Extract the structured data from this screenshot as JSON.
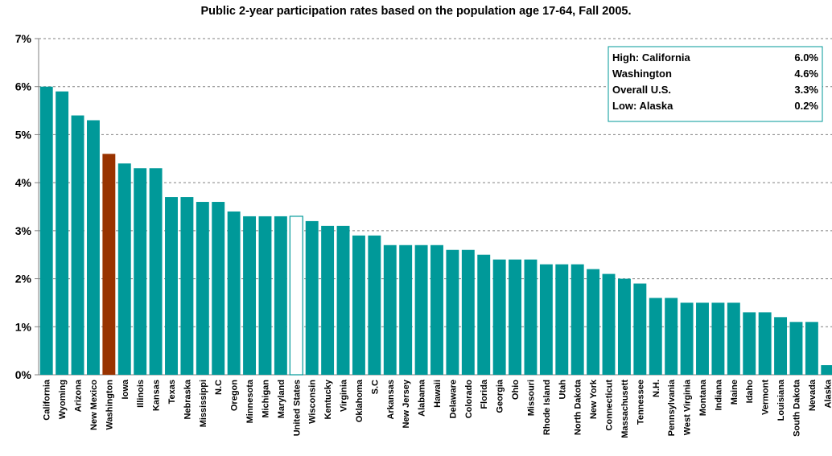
{
  "chart_data": {
    "type": "bar",
    "title": "Public 2-year participation rates based on the population age 17-64, Fall 2005.",
    "ylim": [
      0,
      7
    ],
    "y_ticks": [
      0,
      1,
      2,
      3,
      4,
      5,
      6,
      7
    ],
    "y_tick_labels": [
      "0%",
      "1%",
      "2%",
      "3%",
      "4%",
      "5%",
      "6%",
      "7%"
    ],
    "grid": "dashed horizontal",
    "categories": [
      "California",
      "Wyoming",
      "Arizona",
      "New Mexico",
      "Washington",
      "Iowa",
      "Illinois",
      "Kansas",
      "Texas",
      "Nebraska",
      "Mississippi",
      "N.C",
      "Oregon",
      "Minnesota",
      "Michigan",
      "Maryland",
      "United States",
      "Wisconsin",
      "Kentucky",
      "Virginia",
      "Oklahoma",
      "S.C",
      "Arkansas",
      "New Jersey",
      "Alabama",
      "Hawaii",
      "Delaware",
      "Colorado",
      "Florida",
      "Georgia",
      "Ohio",
      "Missouri",
      "Rhode Island",
      "Utah",
      "North Dakota",
      "New York",
      "Connecticut",
      "Massachusett",
      "Tennessee",
      "N.H.",
      "Pennsylvania",
      "West Virginia",
      "Montana",
      "Indiana",
      "Maine",
      "Idaho",
      "Vermont",
      "Louisiana",
      "South Dakota",
      "Nevada",
      "Alaska"
    ],
    "values": [
      6.0,
      5.9,
      5.4,
      5.3,
      4.6,
      4.4,
      4.3,
      4.3,
      3.7,
      3.7,
      3.6,
      3.6,
      3.4,
      3.3,
      3.3,
      3.3,
      3.3,
      3.2,
      3.1,
      3.1,
      2.9,
      2.9,
      2.7,
      2.7,
      2.7,
      2.7,
      2.6,
      2.6,
      2.5,
      2.4,
      2.4,
      2.4,
      2.3,
      2.3,
      2.3,
      2.2,
      2.1,
      2.0,
      1.9,
      1.6,
      1.6,
      1.5,
      1.5,
      1.5,
      1.5,
      1.3,
      1.3,
      1.2,
      1.1,
      1.1,
      0.2
    ],
    "highlight": {
      "Washington": "highlight",
      "United States": "outline"
    },
    "legend_box": {
      "position": "top-right",
      "rows": [
        {
          "label": "High: California",
          "value": "6.0%"
        },
        {
          "label": "Washington",
          "value": "4.6%"
        },
        {
          "label": "Overall U.S.",
          "value": "3.3%"
        },
        {
          "label": "Low: Alaska",
          "value": "0.2%"
        }
      ]
    }
  },
  "colors": {
    "bar": "#009999",
    "highlight": "#993300",
    "outline_fill": "#ffffff",
    "outline_stroke": "#009999",
    "grid": "#808080",
    "axis": "#808080"
  }
}
